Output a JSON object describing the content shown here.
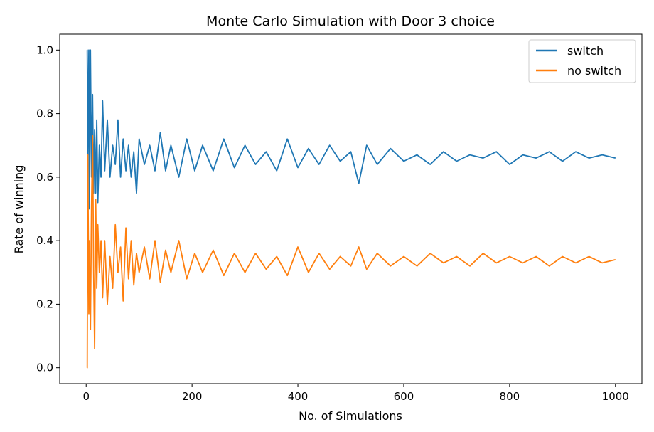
{
  "chart_data": {
    "type": "line",
    "title": "Monte Carlo Simulation with Door 3 choice",
    "xlabel": "No. of Simulations",
    "ylabel": "Rate of winning",
    "xlim": [
      -50,
      1050
    ],
    "ylim": [
      -0.05,
      1.05
    ],
    "x_ticks": [
      0,
      200,
      400,
      600,
      800,
      1000
    ],
    "y_ticks": [
      0.0,
      0.2,
      0.4,
      0.6,
      0.8,
      1.0
    ],
    "x_tick_labels": [
      "0",
      "200",
      "400",
      "600",
      "800",
      "1000"
    ],
    "y_tick_labels": [
      "0.0",
      "0.2",
      "0.4",
      "0.6",
      "0.8",
      "1.0"
    ],
    "grid": false,
    "legend_position": "top-right",
    "colors": {
      "switch": "#1f77b4",
      "no_switch": "#ff7f0e"
    },
    "series": [
      {
        "name": "switch",
        "x": [
          1,
          2,
          3,
          5,
          6,
          8,
          10,
          12,
          14,
          16,
          18,
          20,
          22,
          25,
          28,
          31,
          35,
          40,
          45,
          50,
          55,
          60,
          65,
          70,
          75,
          80,
          85,
          90,
          95,
          100,
          110,
          120,
          130,
          140,
          150,
          160,
          175,
          190,
          205,
          220,
          240,
          260,
          280,
          300,
          320,
          340,
          360,
          380,
          400,
          420,
          440,
          460,
          480,
          500,
          515,
          530,
          550,
          575,
          600,
          625,
          650,
          675,
          700,
          725,
          750,
          775,
          800,
          825,
          850,
          875,
          900,
          925,
          950,
          975,
          1000
        ],
        "y": [
          1.0,
          1.0,
          0.67,
          1.0,
          0.5,
          1.0,
          0.6,
          0.86,
          0.55,
          0.75,
          0.55,
          0.78,
          0.52,
          0.7,
          0.6,
          0.84,
          0.62,
          0.78,
          0.6,
          0.7,
          0.64,
          0.78,
          0.6,
          0.72,
          0.62,
          0.7,
          0.6,
          0.68,
          0.55,
          0.72,
          0.64,
          0.7,
          0.62,
          0.74,
          0.62,
          0.7,
          0.6,
          0.72,
          0.62,
          0.7,
          0.62,
          0.72,
          0.63,
          0.7,
          0.64,
          0.68,
          0.62,
          0.72,
          0.63,
          0.69,
          0.64,
          0.7,
          0.65,
          0.68,
          0.58,
          0.7,
          0.64,
          0.69,
          0.65,
          0.67,
          0.64,
          0.68,
          0.65,
          0.67,
          0.66,
          0.68,
          0.64,
          0.67,
          0.66,
          0.68,
          0.65,
          0.68,
          0.66,
          0.67,
          0.66
        ]
      },
      {
        "name": "no switch",
        "x": [
          1,
          2,
          3,
          5,
          6,
          8,
          10,
          12,
          14,
          16,
          18,
          20,
          22,
          25,
          28,
          31,
          35,
          40,
          45,
          50,
          55,
          60,
          65,
          70,
          75,
          80,
          85,
          90,
          95,
          100,
          110,
          120,
          130,
          140,
          150,
          160,
          175,
          190,
          205,
          220,
          240,
          260,
          280,
          300,
          320,
          340,
          360,
          380,
          400,
          420,
          440,
          460,
          480,
          500,
          515,
          530,
          550,
          575,
          600,
          625,
          650,
          675,
          700,
          725,
          750,
          775,
          800,
          825,
          850,
          875,
          900,
          925,
          950,
          975,
          1000
        ],
        "y": [
          0.0,
          0.0,
          0.67,
          0.17,
          0.4,
          0.12,
          0.5,
          0.73,
          0.3,
          0.06,
          0.53,
          0.25,
          0.45,
          0.3,
          0.4,
          0.22,
          0.4,
          0.2,
          0.35,
          0.25,
          0.45,
          0.3,
          0.38,
          0.21,
          0.44,
          0.28,
          0.4,
          0.26,
          0.36,
          0.3,
          0.38,
          0.28,
          0.4,
          0.27,
          0.37,
          0.3,
          0.4,
          0.28,
          0.36,
          0.3,
          0.37,
          0.29,
          0.36,
          0.3,
          0.36,
          0.31,
          0.35,
          0.29,
          0.38,
          0.3,
          0.36,
          0.31,
          0.35,
          0.32,
          0.38,
          0.31,
          0.36,
          0.32,
          0.35,
          0.32,
          0.36,
          0.33,
          0.35,
          0.32,
          0.36,
          0.33,
          0.35,
          0.33,
          0.35,
          0.32,
          0.35,
          0.33,
          0.35,
          0.33,
          0.34
        ]
      }
    ]
  }
}
